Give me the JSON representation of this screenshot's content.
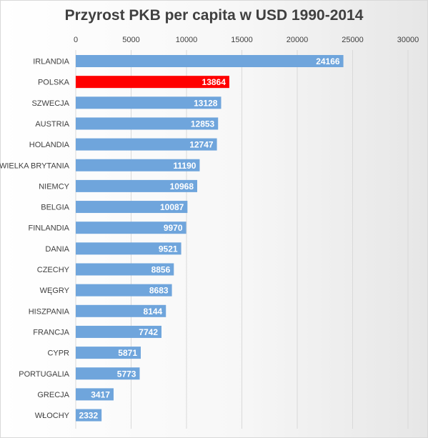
{
  "chart_data": {
    "type": "bar",
    "orientation": "horizontal",
    "title": "Przyrost PKB per capita w USD 1990-2014",
    "xlim": [
      0,
      30000
    ],
    "x_ticks": [
      "0",
      "5000",
      "10000",
      "15000",
      "20000",
      "25000",
      "30000"
    ],
    "x_axis_position": "top",
    "grid": true,
    "categories": [
      "IRLANDIA",
      "POLSKA",
      "SZWECJA",
      "AUSTRIA",
      "HOLANDIA",
      "WIELKA BRYTANIA",
      "NIEMCY",
      "BELGIA",
      "FINLANDIA",
      "DANIA",
      "CZECHY",
      "WĘGRY",
      "HISZPANIA",
      "FRANCJA",
      "CYPR",
      "PORTUGALIA",
      "GRECJA",
      "WŁOCHY"
    ],
    "values": [
      24166,
      13864,
      13128,
      12853,
      12747,
      11190,
      10968,
      10087,
      9970,
      9521,
      8856,
      8683,
      8144,
      7742,
      5871,
      5773,
      3417,
      2332
    ],
    "data_labels": [
      "24166",
      "13864",
      "13128",
      "12853",
      "12747",
      "11190",
      "10968",
      "10087",
      "9970",
      "9521",
      "8856",
      "8683",
      "8144",
      "7742",
      "5871",
      "5773",
      "3417",
      "2332"
    ],
    "colors": {
      "default_bar": "#6fa5dc",
      "highlight_bar": "#ff0000",
      "highlight_category": "POLSKA",
      "grid": "#d9d9d9"
    }
  }
}
